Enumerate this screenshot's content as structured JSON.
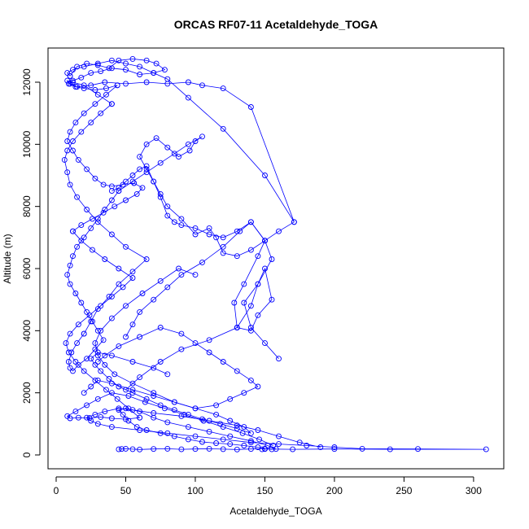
{
  "chart_data": {
    "type": "line",
    "title": "ORCAS RF07-11 Acetaldehyde_TOGA",
    "xlabel": "Acetaldehyde_TOGA",
    "ylabel": "Altitude (m)",
    "xlim": [
      0,
      320
    ],
    "ylim": [
      0,
      12900
    ],
    "x_ticks": [
      0,
      50,
      100,
      150,
      200,
      250,
      300
    ],
    "y_ticks": [
      0,
      2000,
      4000,
      6000,
      8000,
      10000,
      12000
    ],
    "grid": false,
    "legend": "none",
    "markers": "open-circle",
    "series_color": "#0000ff",
    "series": [
      {
        "x": [
          45,
          47,
          50,
          55,
          60,
          70,
          80,
          90,
          100,
          110,
          120,
          130,
          140,
          150,
          155,
          158,
          152,
          140,
          125,
          110,
          95,
          80,
          70,
          60,
          50,
          45,
          48,
          52,
          58,
          65,
          75,
          85,
          95,
          105,
          115,
          125,
          135,
          145,
          150,
          148
        ],
        "y": [
          180,
          190,
          200,
          185,
          175,
          190,
          200,
          180,
          190,
          200,
          185,
          175,
          190,
          200,
          180,
          190,
          300,
          450,
          600,
          750,
          900,
          1050,
          1200,
          1400,
          1500,
          1450,
          1300,
          1100,
          900,
          800,
          700,
          600,
          500,
          420,
          380,
          350,
          300,
          250,
          200,
          180
        ]
      },
      {
        "x": [
          150,
          170,
          200,
          240,
          309,
          260,
          220,
          200,
          180,
          160,
          140,
          120,
          100,
          80,
          60,
          40,
          30,
          25,
          22,
          28,
          35,
          45,
          55,
          70,
          90,
          110,
          130,
          145,
          160,
          175,
          190
        ],
        "y": [
          190,
          180,
          190,
          180,
          180,
          190,
          200,
          250,
          300,
          350,
          400,
          500,
          600,
          700,
          800,
          900,
          1000,
          1100,
          1200,
          1300,
          1400,
          1500,
          1450,
          1350,
          1250,
          1100,
          950,
          800,
          600,
          400,
          250
        ]
      },
      {
        "x": [
          20,
          25,
          30,
          40,
          55,
          70,
          85,
          100,
          115,
          125,
          135,
          140,
          130,
          118,
          105,
          95,
          85,
          75,
          65,
          55,
          45,
          38,
          32,
          28,
          25,
          30,
          40,
          55,
          70,
          80
        ],
        "y": [
          2000,
          2200,
          2400,
          2300,
          2100,
          1900,
          1700,
          1500,
          1300,
          1100,
          900,
          700,
          850,
          1000,
          1150,
          1300,
          1450,
          1600,
          1800,
          2000,
          2200,
          2450,
          2700,
          2900,
          3100,
          3300,
          3200,
          3000,
          2800,
          2600
        ]
      },
      {
        "x": [
          30,
          35,
          45,
          60,
          75,
          90,
          100,
          110,
          120,
          130,
          140,
          145,
          135,
          125,
          115,
          100,
          85,
          70,
          55,
          42,
          35,
          30,
          28,
          32,
          40,
          50,
          62,
          75,
          88,
          100
        ],
        "y": [
          3000,
          3200,
          3500,
          3800,
          4100,
          3900,
          3600,
          3300,
          3000,
          2700,
          2400,
          2200,
          2000,
          1800,
          1600,
          1500,
          1700,
          2000,
          2300,
          2600,
          2900,
          3200,
          3600,
          4000,
          4400,
          4800,
          5200,
          5600,
          6000,
          5800
        ]
      },
      {
        "x": [
          50,
          60,
          75,
          90,
          110,
          130,
          140,
          145,
          150,
          155,
          145,
          140,
          130,
          128,
          135,
          145,
          150,
          140,
          132,
          120,
          105,
          90,
          80,
          70,
          60,
          55,
          50
        ],
        "y": [
          2100,
          2500,
          3000,
          3400,
          3700,
          4100,
          4800,
          5500,
          6000,
          5000,
          4500,
          4000,
          4100,
          4900,
          5500,
          6400,
          6900,
          7500,
          7200,
          6700,
          6200,
          5800,
          5400,
          5000,
          4600,
          4200,
          3800
        ]
      },
      {
        "x": [
          160,
          150,
          140,
          135,
          145,
          155,
          150,
          140,
          130,
          120,
          110,
          100,
          90,
          85,
          80,
          75,
          70,
          65,
          60,
          55,
          50,
          45,
          40
        ],
        "y": [
          3100,
          3600,
          4100,
          4900,
          5500,
          6300,
          6900,
          7500,
          7200,
          7000,
          7100,
          7300,
          7400,
          7500,
          7700,
          8300,
          8800,
          9300,
          9200,
          9000,
          8800,
          8600,
          8500
        ]
      },
      {
        "x": [
          171,
          160,
          150,
          140,
          130,
          120,
          115,
          110,
          100,
          90,
          80,
          75,
          70,
          65,
          60,
          65,
          72,
          80,
          88,
          96,
          100,
          105,
          95,
          85,
          75,
          65,
          55,
          45
        ],
        "y": [
          7500,
          7200,
          6900,
          6600,
          6400,
          6500,
          7000,
          7300,
          7100,
          7600,
          8000,
          8400,
          8800,
          9200,
          9600,
          10000,
          10200,
          9900,
          9600,
          9800,
          10100,
          10250,
          10000,
          9700,
          9400,
          9100,
          8800,
          8500
        ]
      },
      {
        "x": [
          45,
          40,
          35,
          30,
          25,
          20,
          15,
          12,
          10,
          8,
          10,
          14,
          18,
          22,
          26,
          30,
          34,
          28,
          22,
          16,
          12,
          10,
          9,
          11,
          15,
          20
        ],
        "y": [
          8500,
          8200,
          7900,
          7600,
          7300,
          7000,
          6700,
          6400,
          6100,
          5800,
          5500,
          5200,
          4900,
          4600,
          4300,
          4000,
          3700,
          3400,
          3100,
          2900,
          2700,
          2800,
          3000,
          3300,
          3600,
          3900
        ]
      },
      {
        "x": [
          20,
          25,
          30,
          38,
          45,
          55,
          65,
          50,
          40,
          30,
          22,
          15,
          10,
          8,
          6,
          8,
          12,
          18,
          25,
          32,
          40
        ],
        "y": [
          3900,
          4300,
          4700,
          5100,
          5500,
          5900,
          6300,
          6700,
          7100,
          7500,
          7900,
          8300,
          8700,
          9100,
          9500,
          9800,
          10100,
          10400,
          10700,
          11000,
          11300
        ]
      },
      {
        "x": [
          40,
          30,
          20,
          12,
          8,
          10,
          15,
          25,
          35,
          50,
          65,
          80,
          95,
          105,
          120,
          140,
          171,
          150,
          120,
          95,
          80,
          70,
          60,
          50,
          40,
          30,
          20,
          12,
          8,
          10
        ],
        "y": [
          11300,
          11600,
          11900,
          12000,
          12050,
          11950,
          11850,
          11900,
          12000,
          11950,
          12000,
          11950,
          12000,
          11900,
          11800,
          11200,
          7500,
          9000,
          10500,
          11500,
          12100,
          12300,
          12500,
          12600,
          12700,
          12600,
          12500,
          12400,
          12300,
          12200
        ]
      },
      {
        "x": [
          10,
          15,
          22,
          30,
          38,
          45,
          55,
          65,
          72,
          78,
          70,
          60,
          50,
          40,
          32,
          25,
          18,
          12,
          9,
          14,
          20,
          28,
          36,
          44
        ],
        "y": [
          12200,
          12500,
          12600,
          12550,
          12450,
          12700,
          12750,
          12700,
          12600,
          12400,
          12300,
          12250,
          12400,
          12450,
          12350,
          12300,
          12150,
          12050,
          11950,
          11850,
          11800,
          11750,
          11800,
          11900
        ]
      },
      {
        "x": [
          44,
          36,
          28,
          20,
          14,
          10,
          8,
          12,
          16,
          22,
          28,
          34,
          40,
          48,
          56,
          62,
          58,
          50,
          42,
          34,
          26,
          18,
          12
        ],
        "y": [
          11900,
          11600,
          11300,
          11000,
          10700,
          10400,
          10100,
          9800,
          9500,
          9200,
          8900,
          8700,
          8650,
          8700,
          8750,
          8600,
          8400,
          8200,
          8000,
          7800,
          7600,
          7400,
          7200
        ]
      },
      {
        "x": [
          12,
          18,
          26,
          35,
          45,
          55,
          48,
          40,
          32,
          24,
          16,
          10,
          7,
          9,
          14,
          20,
          28,
          36,
          44,
          52,
          60
        ],
        "y": [
          7200,
          6900,
          6600,
          6300,
          6000,
          5700,
          5400,
          5100,
          4800,
          4500,
          4200,
          3900,
          3600,
          3300,
          3000,
          2700,
          2400,
          2100,
          1800,
          1500,
          1200
        ]
      },
      {
        "x": [
          60,
          50,
          40,
          32,
          24,
          16,
          10,
          8,
          14,
          22,
          30,
          40,
          52,
          64,
          78,
          92,
          106,
          120,
          134,
          146,
          156
        ],
        "y": [
          1200,
          1150,
          1180,
          1220,
          1190,
          1200,
          1180,
          1250,
          1400,
          1600,
          1800,
          2000,
          1900,
          1700,
          1500,
          1300,
          1100,
          900,
          700,
          500,
          300
        ]
      }
    ]
  }
}
